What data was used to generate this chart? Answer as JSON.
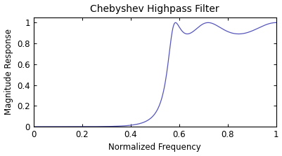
{
  "title": "Chebyshev Highpass Filter",
  "xlabel": "Normalized Frequency",
  "ylabel": "Magnitude Response",
  "xlim": [
    0,
    1
  ],
  "ylim": [
    0,
    1.05
  ],
  "xticks": [
    0,
    0.2,
    0.4,
    0.6,
    0.8,
    1.0
  ],
  "yticks": [
    0,
    0.2,
    0.4,
    0.6,
    0.8,
    1.0
  ],
  "line_color": "#5555bb",
  "background_color": "#ffffff",
  "filter_order": 5,
  "ripple_db": 1.0,
  "cutoff": 0.57,
  "title_fontsize": 10,
  "label_fontsize": 8.5,
  "tick_fontsize": 8.5
}
